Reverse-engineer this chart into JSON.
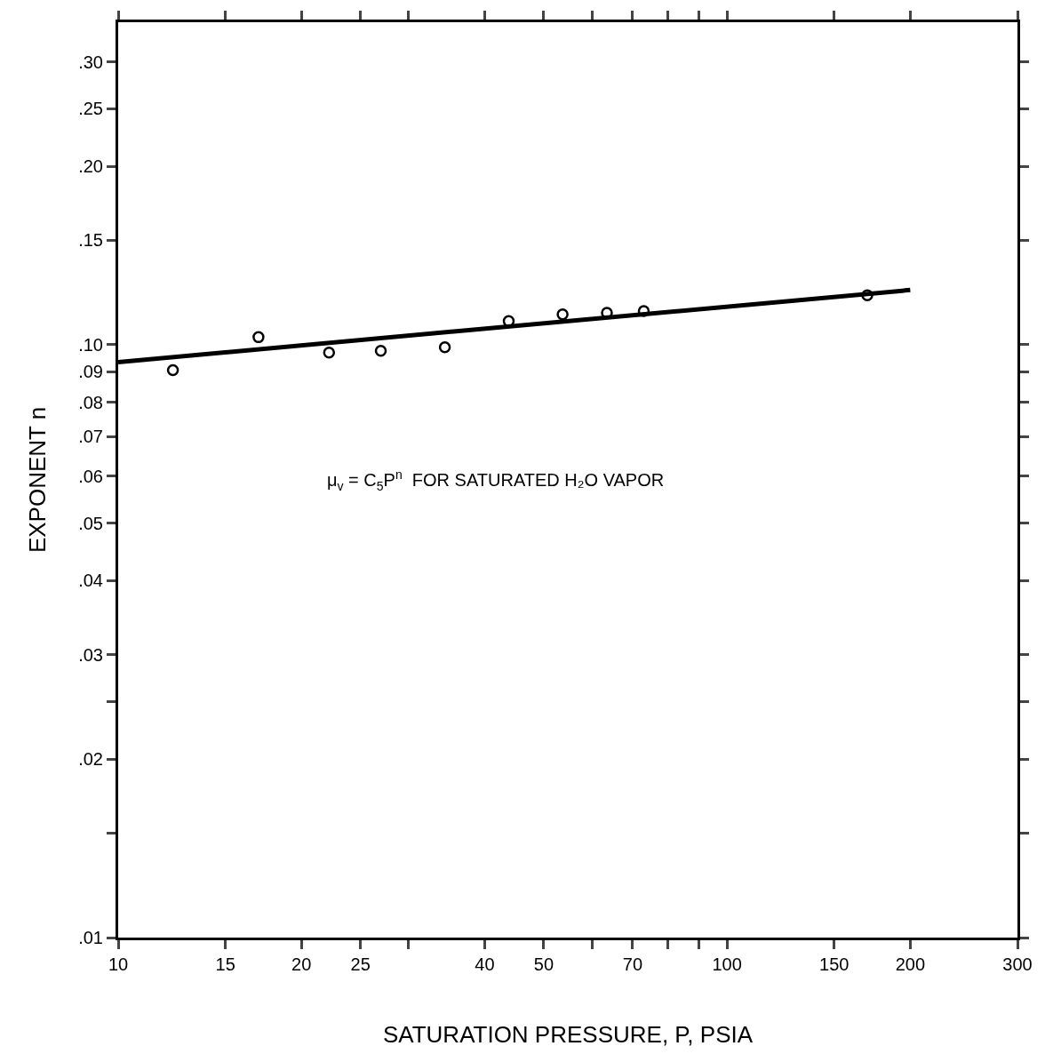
{
  "chart_data": {
    "type": "scatter",
    "xlabel": "SATURATION PRESSURE, P, PSIA",
    "ylabel": "EXPONENT n",
    "log": "xy",
    "grid": false,
    "marker": "circle",
    "line_style": "solid",
    "xlim": [
      10,
      300
    ],
    "ylim": [
      0.01,
      0.35
    ],
    "xticks": [
      10,
      15,
      20,
      25,
      {
        "value": 30,
        "label": null
      },
      40,
      50,
      {
        "value": 60,
        "label": null
      },
      70,
      {
        "value": 80,
        "label": null
      },
      {
        "value": 90,
        "label": null
      },
      100,
      150,
      200,
      300
    ],
    "yticks": [
      {
        "value": 0.01,
        "label": ".01"
      },
      {
        "value": 0.015,
        "label": null
      },
      {
        "value": 0.02,
        "label": ".02"
      },
      {
        "value": 0.025,
        "label": null
      },
      {
        "value": 0.03,
        "label": ".03"
      },
      {
        "value": 0.04,
        "label": ".04"
      },
      {
        "value": 0.05,
        "label": ".05"
      },
      {
        "value": 0.06,
        "label": ".06"
      },
      {
        "value": 0.07,
        "label": ".07"
      },
      {
        "value": 0.08,
        "label": ".08"
      },
      {
        "value": 0.09,
        "label": ".09"
      },
      {
        "value": 0.1,
        "label": ".10"
      },
      {
        "value": 0.15,
        "label": ".15"
      },
      {
        "value": 0.2,
        "label": ".20"
      },
      {
        "value": 0.25,
        "label": ".25"
      },
      {
        "value": 0.3,
        "label": ".30"
      }
    ],
    "series": [
      {
        "type": "scatter",
        "color": "#000000",
        "x": [
          12.3,
          17.0,
          22.2,
          27.0,
          34.4,
          43.8,
          53.7,
          63.5,
          73.0,
          170
        ],
        "values": [
          0.0906,
          0.103,
          0.097,
          0.0977,
          0.099,
          0.1096,
          0.1125,
          0.1132,
          0.114,
          0.1212
        ]
      },
      {
        "type": "line",
        "color": "#000000",
        "marker": "none",
        "x": [
          10,
          200
        ],
        "values": [
          0.0935,
          0.1237
        ]
      }
    ],
    "annotations": [
      "μ$_{v}$ = C$_{5}$P$^{n}$  FOR SATURATED H₂O VAPOR"
    ]
  }
}
